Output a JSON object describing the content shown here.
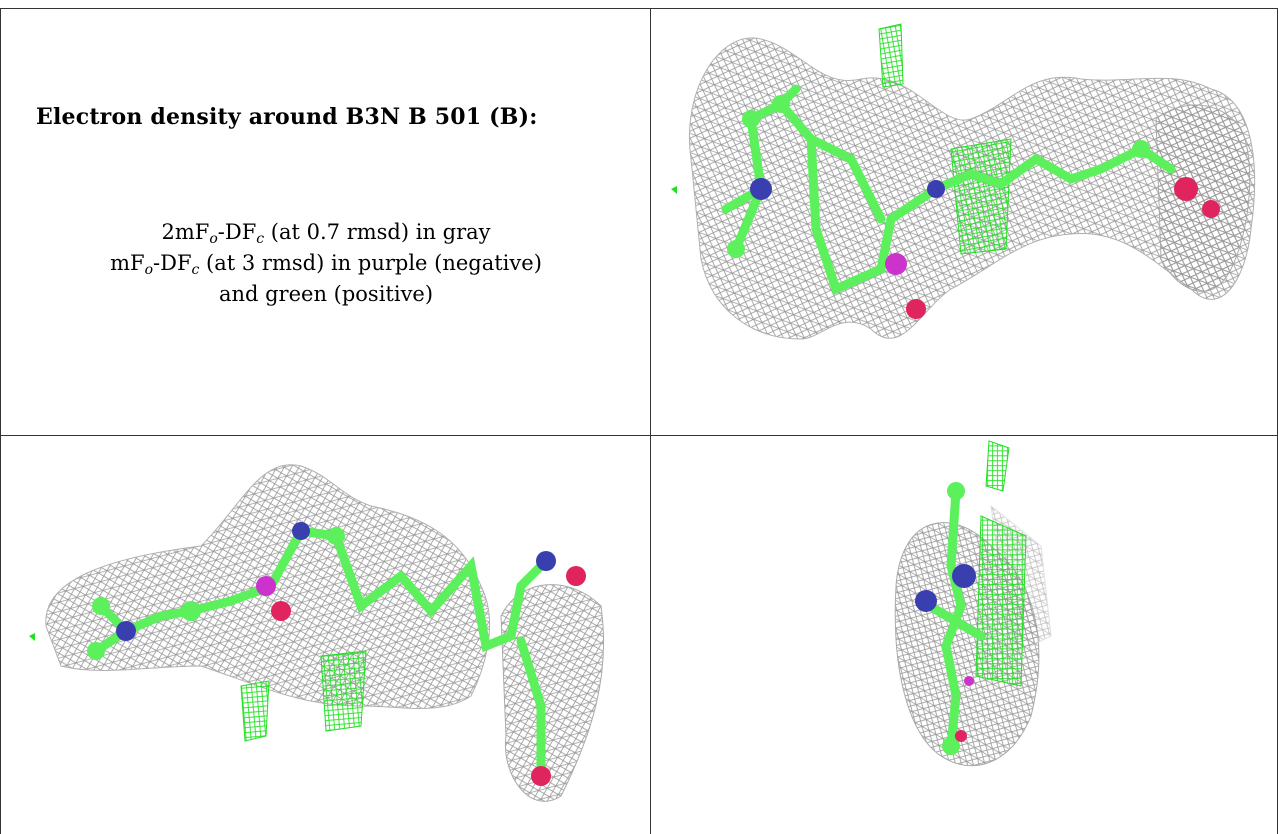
{
  "caption": {
    "title": "Electron density around B3N B 501 (B):",
    "line1_pre": "2mF",
    "line1_sub1": "o",
    "line1_mid": "-DF",
    "line1_sub2": "c",
    "line1_post": " (at 0.7 rmsd) in gray",
    "line2_pre": "mF",
    "line2_sub1": "o",
    "line2_mid": "-DF",
    "line2_sub2": "c",
    "line2_post": " (at 3 rmsd) in purple (negative)",
    "line3": "and green (positive)"
  },
  "colors": {
    "mesh_gray": "#9a9a9a",
    "carbon_green": "#5cf05c",
    "nitrogen_blue": "#3a3fb0",
    "oxygen_red": "#e0245e",
    "positive_green": "#22e022",
    "negative_purple": "#cc33cc"
  },
  "views": [
    {
      "name": "view-top-right"
    },
    {
      "name": "view-bottom-left"
    },
    {
      "name": "view-bottom-right"
    }
  ]
}
